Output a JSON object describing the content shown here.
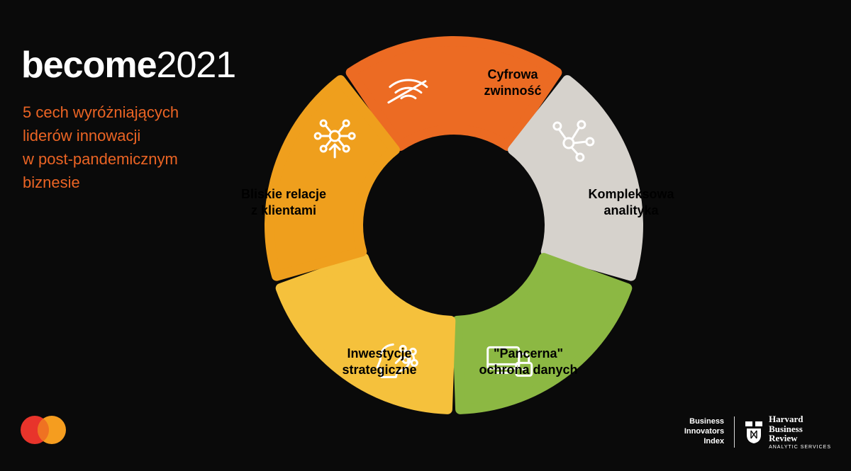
{
  "title": {
    "bold": "become",
    "light": "2021",
    "color": "#ffffff",
    "fontsize": 52
  },
  "subtitle": {
    "line1": "5 cech wyróżniających",
    "line2": "liderów innowacji",
    "line3": "w post-pandemicznym",
    "line4": "biznesie",
    "color": "#eb6424",
    "fontsize": 22
  },
  "donut": {
    "type": "donut",
    "outer_radius": 260,
    "inner_radius": 135,
    "gap_deg": 4,
    "rounding": 14,
    "background": "#0a0a0a",
    "segments": [
      {
        "label_line1": "Cyfrowa",
        "label_line2": "zwinność",
        "color": "#ec6b23",
        "icon": "wifi"
      },
      {
        "label_line1": "Kompleksowa",
        "label_line2": "analityka",
        "color": "#d6d2cc",
        "icon": "network"
      },
      {
        "label_line1": "\"Pancerna\"",
        "label_line2": "ochrona danych",
        "color": "#8cb843",
        "icon": "secure-monitor"
      },
      {
        "label_line1": "Inwestycje",
        "label_line2": "strategiczne",
        "color": "#f5c13c",
        "icon": "head-ideas"
      },
      {
        "label_line1": "Bliskie relacje",
        "label_line2": "z klientami",
        "color": "#ef9f1d",
        "icon": "hub-up"
      }
    ],
    "label_fontsize": 18,
    "label_color": "#000000",
    "icon_color": "#ffffff",
    "icon_stroke": 3
  },
  "footer": {
    "mastercard": {
      "left_color": "#e8342b",
      "right_color": "#f59d1f"
    },
    "bii": {
      "line1": "Business",
      "line2": "Innovators",
      "line3": "Index"
    },
    "hbr": {
      "line1": "Harvard",
      "line2": "Business",
      "line3": "Review",
      "sub": "ANALYTIC SERVICES"
    }
  }
}
